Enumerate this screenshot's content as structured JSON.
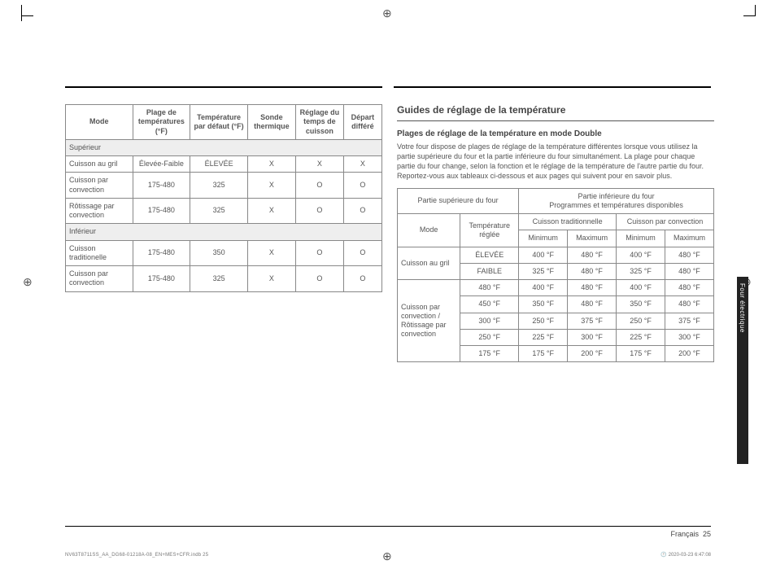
{
  "crop_marks": true,
  "table1": {
    "headers": [
      "Mode",
      "Plage de températures (°F)",
      "Température par défaut (°F)",
      "Sonde thermique",
      "Réglage du temps de cuisson",
      "Départ différé"
    ],
    "section1": "Supérieur",
    "rows1": [
      [
        "Cuisson au gril",
        "Élevée-Faible",
        "ÉLEVÉE",
        "X",
        "X",
        "X"
      ],
      [
        "Cuisson par convection",
        "175-480",
        "325",
        "X",
        "O",
        "O"
      ],
      [
        "Rôtissage par convection",
        "175-480",
        "325",
        "X",
        "O",
        "O"
      ]
    ],
    "section2": "Inférieur",
    "rows2": [
      [
        "Cuisson traditionelle",
        "175-480",
        "350",
        "X",
        "O",
        "O"
      ],
      [
        "Cuisson par convection",
        "175-480",
        "325",
        "X",
        "O",
        "O"
      ]
    ]
  },
  "right": {
    "h3": "Guides de réglage de la température",
    "h4": "Plages de réglage de la température en mode Double",
    "para": "Votre four dispose de plages de réglage de la température différentes lorsque vous utilisez la partie supérieure du four et la partie inférieure du four simultanément. La plage pour chaque partie du four change, selon la fonction et le réglage de la température de l'autre partie du four. Reportez-vous aux tableaux ci-dessous et aux pages qui suivent pour en savoir plus."
  },
  "table2": {
    "top_left": "Partie supérieure du four",
    "top_right_a": "Partie inférieure du four",
    "top_right_b": "Programmes et températures disponibles",
    "mode": "Mode",
    "temp": "Température réglée",
    "ct": "Cuisson traditionnelle",
    "cc": "Cuisson par convection",
    "min": "Minimum",
    "max": "Maximum",
    "mode1": "Cuisson au gril",
    "mode2": "Cuisson par convection / Rôtissage par convection",
    "r": [
      [
        "ÉLEVÉE",
        "400 °F",
        "480 °F",
        "400 °F",
        "480 °F"
      ],
      [
        "FAIBLE",
        "325 °F",
        "480 °F",
        "325 °F",
        "480 °F"
      ],
      [
        "480 °F",
        "400 °F",
        "480 °F",
        "400 °F",
        "480 °F"
      ],
      [
        "450 °F",
        "350 °F",
        "480 °F",
        "350 °F",
        "480 °F"
      ],
      [
        "300 °F",
        "250 °F",
        "375 °F",
        "250 °F",
        "375 °F"
      ],
      [
        "250 °F",
        "225 °F",
        "300 °F",
        "225 °F",
        "300 °F"
      ],
      [
        "175 °F",
        "175 °F",
        "200 °F",
        "175 °F",
        "200 °F"
      ]
    ]
  },
  "side_tab": "Four électrique",
  "footer_lang": "Français",
  "footer_page": "25",
  "print_code": "NV63T8711SS_AA_DG68-01218A-08_EN+MES+CFR.indb   25",
  "print_time": "2020-03-23      6:47:08"
}
